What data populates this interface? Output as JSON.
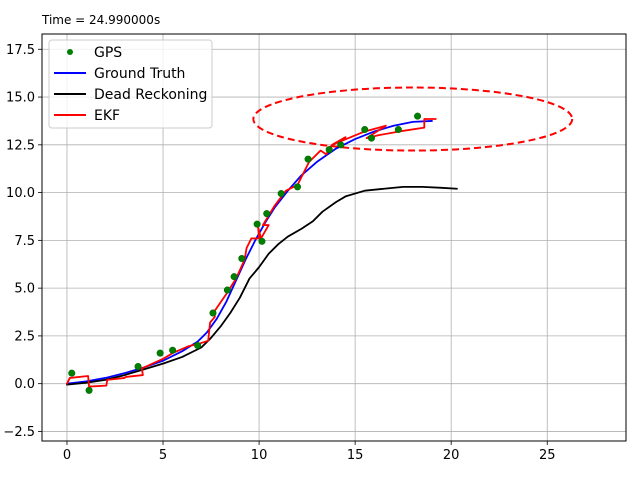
{
  "chart_data": {
    "type": "line",
    "annotation": "Time = 24.990000s",
    "title": "",
    "xlabel": "",
    "ylabel": "",
    "xlim": [
      -1.3,
      29.1
    ],
    "ylim": [
      -3.0,
      18.3
    ],
    "x_ticks": [
      0,
      5,
      10,
      15,
      20,
      25
    ],
    "y_ticks": [
      -2.5,
      0.0,
      2.5,
      5.0,
      7.5,
      10.0,
      12.5,
      15.0,
      17.5
    ],
    "x_tick_labels": [
      "0",
      "5",
      "10",
      "15",
      "20",
      "25"
    ],
    "y_tick_labels": [
      "−2.5",
      "0.0",
      "2.5",
      "5.0",
      "7.5",
      "10.0",
      "12.5",
      "15.0",
      "17.5"
    ],
    "grid": true,
    "legend_position": "upper-left",
    "colors": {
      "gps": "#008000",
      "ground_truth": "#0000ff",
      "dead_reckoning": "#000000",
      "ekf": "#ff0000",
      "axes": "#000000",
      "grid": "#b0b0b0"
    },
    "series": [
      {
        "name": "GPS",
        "style": "markers",
        "points": [
          [
            0.25,
            0.55
          ],
          [
            1.15,
            -0.35
          ],
          [
            3.7,
            0.9
          ],
          [
            4.85,
            1.6
          ],
          [
            5.5,
            1.75
          ],
          [
            6.8,
            2.0
          ],
          [
            7.6,
            3.7
          ],
          [
            8.35,
            4.9
          ],
          [
            8.7,
            5.6
          ],
          [
            9.1,
            6.55
          ],
          [
            9.9,
            8.35
          ],
          [
            10.15,
            7.45
          ],
          [
            10.4,
            8.9
          ],
          [
            11.15,
            9.95
          ],
          [
            12.0,
            10.3
          ],
          [
            12.55,
            11.75
          ],
          [
            13.65,
            12.25
          ],
          [
            14.25,
            12.5
          ],
          [
            15.5,
            13.3
          ],
          [
            15.85,
            12.85
          ],
          [
            17.25,
            13.3
          ],
          [
            18.25,
            14.0
          ]
        ]
      },
      {
        "name": "Ground Truth",
        "style": "line",
        "points": [
          [
            0.0,
            0.0
          ],
          [
            1.0,
            0.12
          ],
          [
            2.0,
            0.3
          ],
          [
            3.0,
            0.55
          ],
          [
            4.0,
            0.85
          ],
          [
            5.0,
            1.2
          ],
          [
            6.0,
            1.7
          ],
          [
            6.8,
            2.2
          ],
          [
            7.3,
            2.7
          ],
          [
            7.8,
            3.4
          ],
          [
            8.3,
            4.3
          ],
          [
            8.8,
            5.4
          ],
          [
            9.3,
            6.5
          ],
          [
            9.8,
            7.5
          ],
          [
            10.3,
            8.4
          ],
          [
            10.8,
            9.2
          ],
          [
            11.5,
            10.1
          ],
          [
            12.2,
            10.9
          ],
          [
            13.0,
            11.6
          ],
          [
            14.0,
            12.3
          ],
          [
            15.0,
            12.8
          ],
          [
            16.0,
            13.2
          ],
          [
            17.0,
            13.5
          ],
          [
            18.0,
            13.7
          ],
          [
            19.0,
            13.75
          ]
        ]
      },
      {
        "name": "Dead Reckoning",
        "style": "line",
        "points": [
          [
            0.0,
            -0.05
          ],
          [
            1.0,
            0.05
          ],
          [
            2.0,
            0.2
          ],
          [
            3.0,
            0.45
          ],
          [
            4.0,
            0.75
          ],
          [
            5.0,
            1.05
          ],
          [
            6.0,
            1.4
          ],
          [
            7.0,
            1.9
          ],
          [
            7.5,
            2.4
          ],
          [
            8.0,
            3.0
          ],
          [
            8.5,
            3.7
          ],
          [
            9.0,
            4.5
          ],
          [
            9.5,
            5.5
          ],
          [
            10.0,
            6.1
          ],
          [
            10.5,
            6.8
          ],
          [
            11.0,
            7.3
          ],
          [
            11.5,
            7.7
          ],
          [
            12.2,
            8.1
          ],
          [
            12.8,
            8.5
          ],
          [
            13.3,
            9.0
          ],
          [
            14.0,
            9.5
          ],
          [
            14.5,
            9.8
          ],
          [
            15.5,
            10.1
          ],
          [
            16.5,
            10.2
          ],
          [
            17.5,
            10.3
          ],
          [
            18.5,
            10.3
          ],
          [
            19.5,
            10.25
          ],
          [
            20.3,
            10.2
          ]
        ]
      },
      {
        "name": "EKF",
        "style": "line",
        "points": [
          [
            0.0,
            0.0
          ],
          [
            0.15,
            0.3
          ],
          [
            1.1,
            0.4
          ],
          [
            1.15,
            -0.15
          ],
          [
            2.05,
            -0.1
          ],
          [
            2.1,
            0.2
          ],
          [
            3.0,
            0.3
          ],
          [
            3.05,
            0.35
          ],
          [
            3.95,
            0.45
          ],
          [
            3.9,
            0.8
          ],
          [
            5.0,
            1.3
          ],
          [
            5.5,
            1.6
          ],
          [
            6.3,
            1.95
          ],
          [
            6.9,
            2.1
          ],
          [
            7.35,
            2.25
          ],
          [
            7.45,
            3.2
          ],
          [
            7.7,
            3.5
          ],
          [
            7.65,
            3.75
          ],
          [
            8.3,
            4.7
          ],
          [
            8.8,
            5.5
          ],
          [
            9.25,
            6.5
          ],
          [
            9.35,
            7.1
          ],
          [
            9.6,
            7.6
          ],
          [
            10.0,
            7.6
          ],
          [
            9.95,
            8.2
          ],
          [
            10.1,
            7.6
          ],
          [
            10.5,
            8.3
          ],
          [
            10.2,
            8.3
          ],
          [
            10.8,
            9.3
          ],
          [
            11.4,
            10.1
          ],
          [
            12.0,
            10.4
          ],
          [
            12.6,
            11.6
          ],
          [
            13.2,
            12.2
          ],
          [
            13.5,
            12.0
          ],
          [
            13.7,
            12.4
          ],
          [
            14.5,
            12.9
          ],
          [
            13.8,
            12.5
          ],
          [
            15.5,
            13.2
          ],
          [
            16.6,
            13.5
          ],
          [
            15.6,
            12.85
          ],
          [
            16.2,
            13.0
          ],
          [
            17.3,
            13.2
          ],
          [
            18.6,
            13.4
          ],
          [
            18.6,
            13.85
          ],
          [
            19.2,
            13.85
          ]
        ]
      }
    ],
    "covariance_ellipse": {
      "center": [
        18.0,
        13.85
      ],
      "half_width": 8.3,
      "half_height": 1.65,
      "angle_deg": 0,
      "style": "dashed",
      "color": "#ff0000"
    }
  }
}
